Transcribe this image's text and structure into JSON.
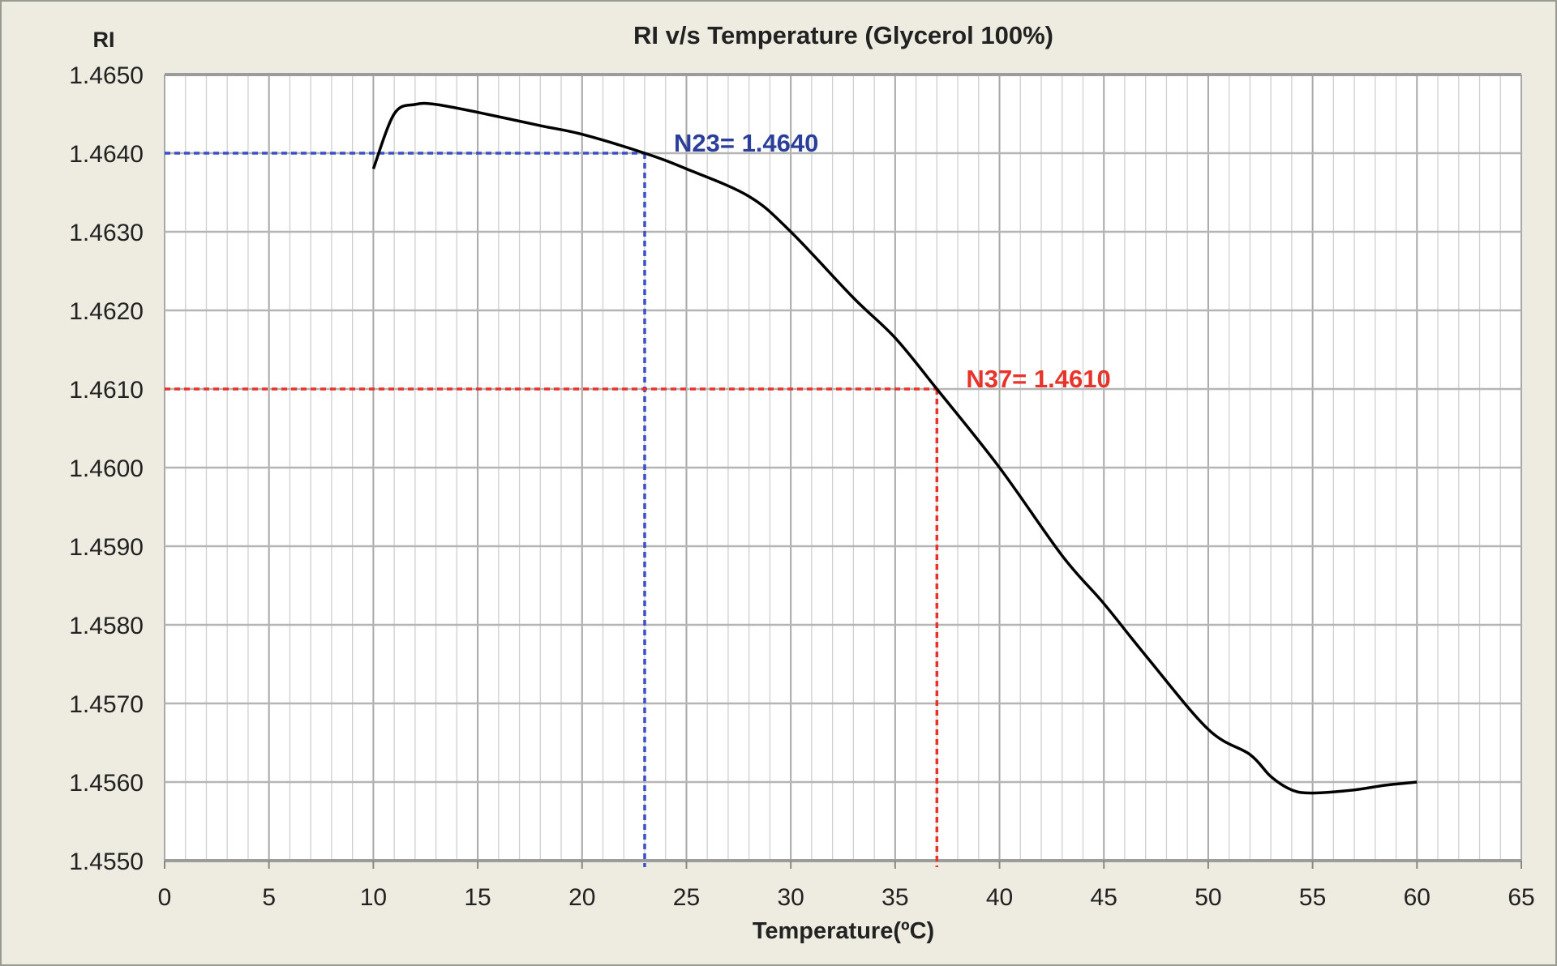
{
  "chart_data": {
    "type": "line",
    "title": "RI v/s Temperature (Glycerol 100%)",
    "xlabel": "Temperature(ºC)",
    "ylabel": "RI",
    "xlim": [
      0,
      65
    ],
    "ylim": [
      1.455,
      1.465
    ],
    "xticks": [
      0,
      5,
      10,
      15,
      20,
      25,
      30,
      35,
      40,
      45,
      50,
      55,
      60,
      65
    ],
    "yticks": [
      "1.4550",
      "1.4560",
      "1.4570",
      "1.4580",
      "1.4590",
      "1.4600",
      "1.4610",
      "1.4620",
      "1.4630",
      "1.4640",
      "1.4650"
    ],
    "grid": {
      "major_x": 5,
      "minor_x": 1,
      "major_y": 0.001
    },
    "series": [
      {
        "color": "#000000",
        "x": [
          10,
          11,
          12,
          13,
          15,
          18,
          20,
          23,
          25,
          28,
          30,
          33,
          35,
          37,
          40,
          43,
          45,
          47,
          50,
          52,
          53,
          54,
          55,
          57,
          58.5,
          60
        ],
        "y": [
          1.4638,
          1.4645,
          1.46462,
          1.46462,
          1.46452,
          1.46435,
          1.46424,
          1.464,
          1.4638,
          1.46345,
          1.463,
          1.46216,
          1.46165,
          1.461,
          1.46,
          1.45888,
          1.45827,
          1.45761,
          1.45667,
          1.45635,
          1.45607,
          1.4559,
          1.45586,
          1.4559,
          1.45596,
          1.456
        ]
      }
    ],
    "annotations": [
      {
        "label": "N23= 1.4640",
        "x": 23,
        "y": 1.464,
        "color": "#2b3f9a",
        "line_color": "#3a4fc8"
      },
      {
        "label": "N37= 1.4610",
        "x": 37,
        "y": 1.461,
        "color": "#e8332a",
        "line_color": "#e8332a"
      }
    ]
  }
}
